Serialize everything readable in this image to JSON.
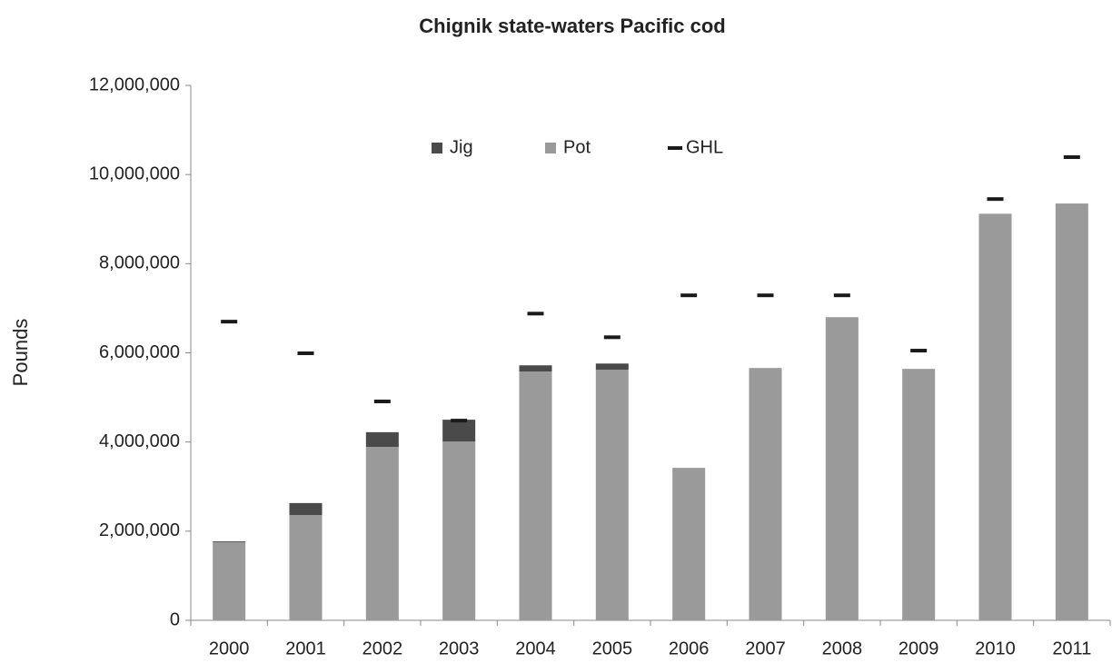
{
  "chart_data": {
    "type": "bar",
    "title": "Chignik state-waters Pacific cod",
    "y_label": "Pounds",
    "categories": [
      "2000",
      "2001",
      "2002",
      "2003",
      "2004",
      "2005",
      "2006",
      "2007",
      "2008",
      "2009",
      "2010",
      "2011"
    ],
    "series": [
      {
        "name": "Jig",
        "color": "#4a4a4a",
        "values": [
          20000,
          270000,
          330000,
          490000,
          140000,
          140000,
          0,
          0,
          0,
          0,
          0,
          0
        ]
      },
      {
        "name": "Pot",
        "color": "#9a9a9a",
        "values": [
          1750000,
          2360000,
          3890000,
          4010000,
          5580000,
          5620000,
          3420000,
          5660000,
          6800000,
          5640000,
          9120000,
          9350000
        ]
      },
      {
        "name": "GHL",
        "color": "#1a1a1a",
        "type": "marker",
        "values": [
          6700000,
          5990000,
          4910000,
          4480000,
          6880000,
          6350000,
          7290000,
          7290000,
          7290000,
          6050000,
          9450000,
          10390000
        ]
      }
    ],
    "ylim": [
      0,
      12000000
    ],
    "yticks": [
      0,
      {
        "value": 2000000,
        "label": "2,000,000"
      },
      {
        "value": 4000000,
        "label": "4,000,000"
      },
      {
        "value": 6000000,
        "label": "6,000,000"
      },
      {
        "value": 8000000,
        "label": "8,000,000"
      },
      {
        "value": 10000000,
        "label": "10,000,000"
      },
      {
        "value": 12000000,
        "label": "12,000,000"
      }
    ],
    "legend": "top"
  }
}
